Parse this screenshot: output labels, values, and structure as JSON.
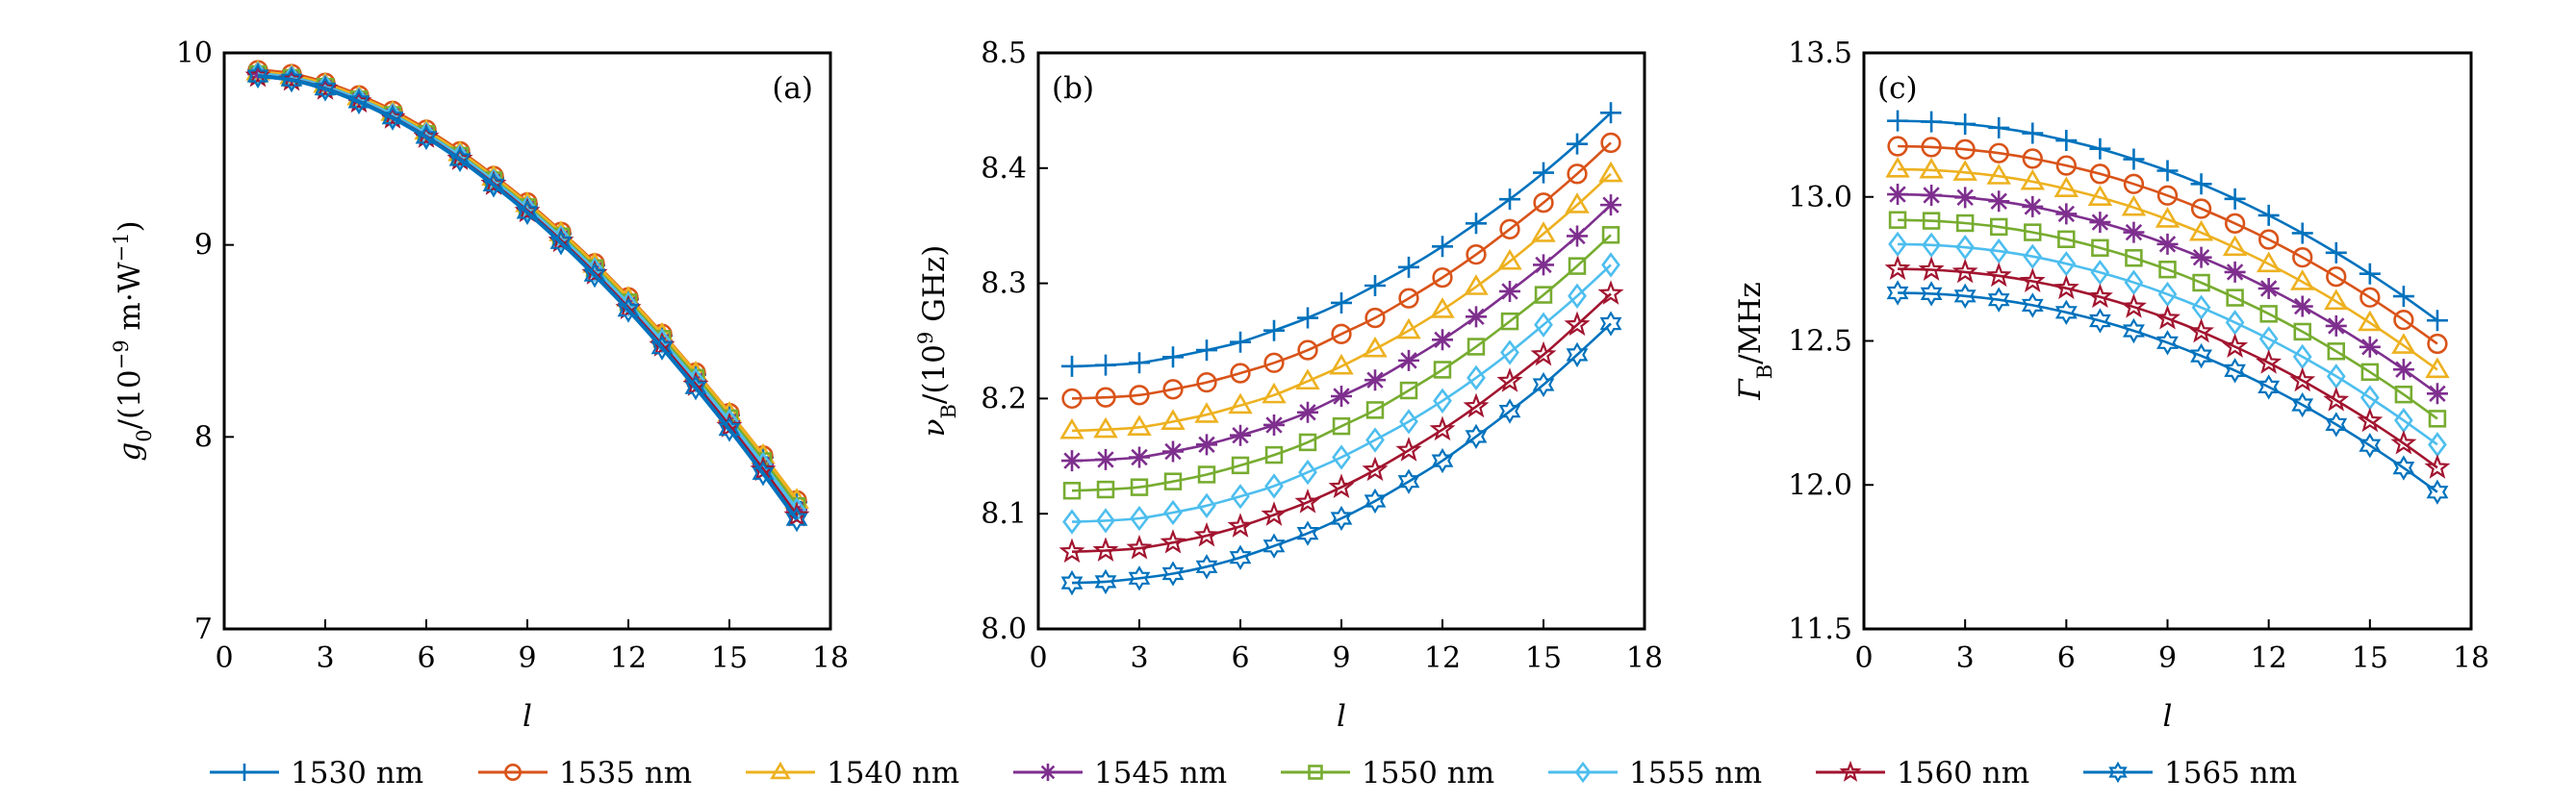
{
  "chart_data": {
    "type": "line",
    "x": [
      1,
      2,
      3,
      4,
      5,
      6,
      7,
      8,
      9,
      10,
      11,
      12,
      13,
      14,
      15,
      16,
      17
    ],
    "legend": {
      "placement": "bottom",
      "entries": [
        {
          "name": "1530 nm",
          "color": "#0072bd",
          "marker": "plus"
        },
        {
          "name": "1535 nm",
          "color": "#d95319",
          "marker": "circle"
        },
        {
          "name": "1540 nm",
          "color": "#edb120",
          "marker": "triangle"
        },
        {
          "name": "1545 nm",
          "color": "#7e2f8e",
          "marker": "asterisk"
        },
        {
          "name": "1550 nm",
          "color": "#77ac30",
          "marker": "square"
        },
        {
          "name": "1555 nm",
          "color": "#4dbeee",
          "marker": "diamond"
        },
        {
          "name": "1560 nm",
          "color": "#a2142f",
          "marker": "pentagram"
        },
        {
          "name": "1565 nm",
          "color": "#0072bd",
          "marker": "hexagram"
        }
      ]
    },
    "panels": [
      {
        "id": "a",
        "panel_label": "(a)",
        "label_position": "top-right",
        "xlabel": "l",
        "ylabel_main": "g",
        "ylabel_sub": "0",
        "ylabel_rest": "/(10",
        "ylabel_sup": "−9",
        "ylabel_tail": " m·W",
        "ylabel_sup2": "−1",
        "ylabel_end": ")",
        "xlim": [
          0,
          18
        ],
        "ylim": [
          7,
          10
        ],
        "xticks": [
          0,
          3,
          6,
          9,
          12,
          15,
          18
        ],
        "xtick_labels": [
          "0",
          "3",
          "6",
          "9",
          "12",
          "15",
          "18"
        ],
        "yticks": [
          7,
          8,
          9,
          10
        ],
        "ytick_labels": [
          "7",
          "8",
          "9",
          "10"
        ],
        "series": [
          {
            "name": "1530 nm",
            "values": [
              9.9,
              9.88,
              9.834,
              9.769,
              9.688,
              9.59,
              9.477,
              9.349,
              9.211,
              9.058,
              8.894,
              8.717,
              8.527,
              8.325,
              8.114,
              7.893,
              7.66
            ]
          },
          {
            "name": "1535 nm",
            "values": [
              9.91,
              9.89,
              9.844,
              9.779,
              9.698,
              9.6,
              9.487,
              9.359,
              9.221,
              9.068,
              8.904,
              8.727,
              8.537,
              8.335,
              8.124,
              7.903,
              7.67
            ]
          },
          {
            "name": "1540 nm",
            "values": [
              9.9,
              9.88,
              9.835,
              9.77,
              9.689,
              9.591,
              9.479,
              9.352,
              9.214,
              9.062,
              8.898,
              8.722,
              8.533,
              8.332,
              8.122,
              7.902,
              7.67
            ]
          },
          {
            "name": "1545 nm",
            "values": [
              9.89,
              9.87,
              9.823,
              9.757,
              9.675,
              9.576,
              9.461,
              9.332,
              9.191,
              9.037,
              8.87,
              8.691,
              8.498,
              8.294,
              8.081,
              7.856,
              7.62
            ]
          },
          {
            "name": "1550 nm",
            "values": [
              9.89,
              9.87,
              9.824,
              9.758,
              9.677,
              9.578,
              9.465,
              9.337,
              9.197,
              9.045,
              8.879,
              8.701,
              8.511,
              8.308,
              8.097,
              7.874,
              7.64
            ]
          },
          {
            "name": "1555 nm",
            "values": [
              9.89,
              9.87,
              9.823,
              9.757,
              9.675,
              9.576,
              9.461,
              9.332,
              9.191,
              9.037,
              8.87,
              8.691,
              8.498,
              8.294,
              8.081,
              7.856,
              7.62
            ]
          },
          {
            "name": "1560 nm",
            "values": [
              9.88,
              9.86,
              9.813,
              9.746,
              9.663,
              9.563,
              9.447,
              9.317,
              9.175,
              9.02,
              8.851,
              8.67,
              8.476,
              8.27,
              8.055,
              7.828,
              7.59
            ]
          },
          {
            "name": "1565 nm",
            "values": [
              9.88,
              9.859,
              9.812,
              9.745,
              9.661,
              9.56,
              9.444,
              9.312,
              9.169,
              9.012,
              8.842,
              8.66,
              8.464,
              8.256,
              8.039,
              7.81,
              7.57
            ]
          }
        ]
      },
      {
        "id": "b",
        "panel_label": "(b)",
        "label_position": "top-left",
        "xlabel": "l",
        "ylabel_main": "ν",
        "ylabel_sub": "B",
        "ylabel_rest": "/(10",
        "ylabel_sup": "9",
        "ylabel_tail": " GHz",
        "ylabel_sup2": "",
        "ylabel_end": ")",
        "xlim": [
          0,
          18
        ],
        "ylim": [
          8.0,
          8.5
        ],
        "xticks": [
          0,
          3,
          6,
          9,
          12,
          15,
          18
        ],
        "xtick_labels": [
          "0",
          "3",
          "6",
          "9",
          "12",
          "15",
          "18"
        ],
        "yticks": [
          8.0,
          8.1,
          8.2,
          8.3,
          8.4,
          8.5
        ],
        "ytick_labels": [
          "8.0",
          "8.1",
          "8.2",
          "8.3",
          "8.4",
          "8.5"
        ],
        "series": [
          {
            "name": "1530 nm",
            "values": [
              8.228,
              8.229,
              8.231,
              8.236,
              8.242,
              8.249,
              8.259,
              8.27,
              8.283,
              8.298,
              8.314,
              8.332,
              8.352,
              8.373,
              8.396,
              8.421,
              8.448
            ]
          },
          {
            "name": "1535 nm",
            "values": [
              8.2,
              8.201,
              8.203,
              8.208,
              8.214,
              8.222,
              8.231,
              8.242,
              8.256,
              8.27,
              8.287,
              8.305,
              8.325,
              8.347,
              8.37,
              8.395,
              8.422
            ]
          },
          {
            "name": "1540 nm",
            "values": [
              8.172,
              8.173,
              8.175,
              8.18,
              8.186,
              8.194,
              8.203,
              8.215,
              8.228,
              8.243,
              8.259,
              8.277,
              8.297,
              8.319,
              8.343,
              8.368,
              8.395
            ]
          },
          {
            "name": "1545 nm",
            "values": [
              8.146,
              8.147,
              8.149,
              8.154,
              8.16,
              8.168,
              8.177,
              8.188,
              8.202,
              8.216,
              8.233,
              8.251,
              8.271,
              8.293,
              8.316,
              8.341,
              8.368
            ]
          },
          {
            "name": "1550 nm",
            "values": [
              8.12,
              8.121,
              8.123,
              8.128,
              8.134,
              8.142,
              8.151,
              8.162,
              8.176,
              8.19,
              8.207,
              8.225,
              8.245,
              8.267,
              8.29,
              8.315,
              8.342
            ]
          },
          {
            "name": "1555 nm",
            "values": [
              8.093,
              8.094,
              8.096,
              8.101,
              8.107,
              8.115,
              8.124,
              8.136,
              8.149,
              8.164,
              8.18,
              8.198,
              8.218,
              8.24,
              8.264,
              8.289,
              8.316
            ]
          },
          {
            "name": "1560 nm",
            "values": [
              8.067,
              8.068,
              8.07,
              8.075,
              8.081,
              8.089,
              8.099,
              8.11,
              8.123,
              8.138,
              8.155,
              8.173,
              8.193,
              8.215,
              8.238,
              8.264,
              8.291
            ]
          },
          {
            "name": "1565 nm",
            "values": [
              8.04,
              8.041,
              8.044,
              8.048,
              8.054,
              8.062,
              8.072,
              8.083,
              8.096,
              8.111,
              8.128,
              8.146,
              8.167,
              8.189,
              8.212,
              8.238,
              8.265
            ]
          }
        ]
      },
      {
        "id": "c",
        "panel_label": "(c)",
        "label_position": "top-left",
        "xlabel": "l",
        "ylabel_main": "Γ",
        "ylabel_sub": "B",
        "ylabel_rest": "/MHz",
        "ylabel_sup": "",
        "ylabel_tail": "",
        "ylabel_sup2": "",
        "ylabel_end": "",
        "xlim": [
          0,
          18
        ],
        "ylim": [
          11.5,
          13.5
        ],
        "xticks": [
          0,
          3,
          6,
          9,
          12,
          15,
          18
        ],
        "xtick_labels": [
          "0",
          "3",
          "6",
          "9",
          "12",
          "15",
          "18"
        ],
        "yticks": [
          11.5,
          12.0,
          12.5,
          13.0,
          13.5
        ],
        "ytick_labels": [
          "11.5",
          "12.0",
          "12.5",
          "13.0",
          "13.5"
        ],
        "series": [
          {
            "name": "1530 nm",
            "values": [
              13.264,
              13.261,
              13.253,
              13.24,
              13.221,
              13.196,
              13.167,
              13.131,
              13.091,
              13.045,
              12.993,
              12.936,
              12.874,
              12.806,
              12.733,
              12.655,
              12.571
            ]
          },
          {
            "name": "1535 nm",
            "values": [
              13.176,
              13.173,
              13.165,
              13.152,
              13.133,
              13.109,
              13.08,
              13.045,
              13.005,
              12.959,
              12.908,
              12.852,
              12.79,
              12.723,
              12.651,
              12.573,
              12.49
            ]
          },
          {
            "name": "1540 nm",
            "values": [
              13.096,
              13.093,
              13.085,
              13.072,
              13.053,
              13.028,
              12.998,
              12.963,
              12.922,
              12.876,
              12.824,
              12.767,
              12.705,
              12.637,
              12.563,
              12.484,
              12.4
            ]
          },
          {
            "name": "1545 nm",
            "values": [
              13.009,
              13.006,
              12.998,
              12.985,
              12.966,
              12.941,
              12.912,
              12.877,
              12.836,
              12.79,
              12.739,
              12.682,
              12.62,
              12.552,
              12.479,
              12.401,
              12.317
            ]
          },
          {
            "name": "1550 nm",
            "values": [
              12.92,
              12.917,
              12.909,
              12.896,
              12.877,
              12.853,
              12.823,
              12.788,
              12.748,
              12.702,
              12.65,
              12.594,
              12.532,
              12.464,
              12.392,
              12.314,
              12.23
            ]
          },
          {
            "name": "1555 nm",
            "values": [
              12.836,
              12.833,
              12.825,
              12.812,
              12.793,
              12.768,
              12.738,
              12.703,
              12.662,
              12.616,
              12.564,
              12.507,
              12.445,
              12.377,
              12.303,
              12.224,
              12.14
            ]
          },
          {
            "name": "1560 nm",
            "values": [
              12.75,
              12.747,
              12.739,
              12.726,
              12.707,
              12.683,
              12.653,
              12.618,
              12.578,
              12.532,
              12.48,
              12.424,
              12.362,
              12.294,
              12.222,
              12.144,
              12.06
            ]
          },
          {
            "name": "1565 nm",
            "values": [
              12.667,
              12.664,
              12.656,
              12.643,
              12.624,
              12.599,
              12.57,
              12.535,
              12.494,
              12.448,
              12.397,
              12.34,
              12.278,
              12.21,
              12.137,
              12.059,
              11.975
            ]
          }
        ]
      }
    ]
  }
}
